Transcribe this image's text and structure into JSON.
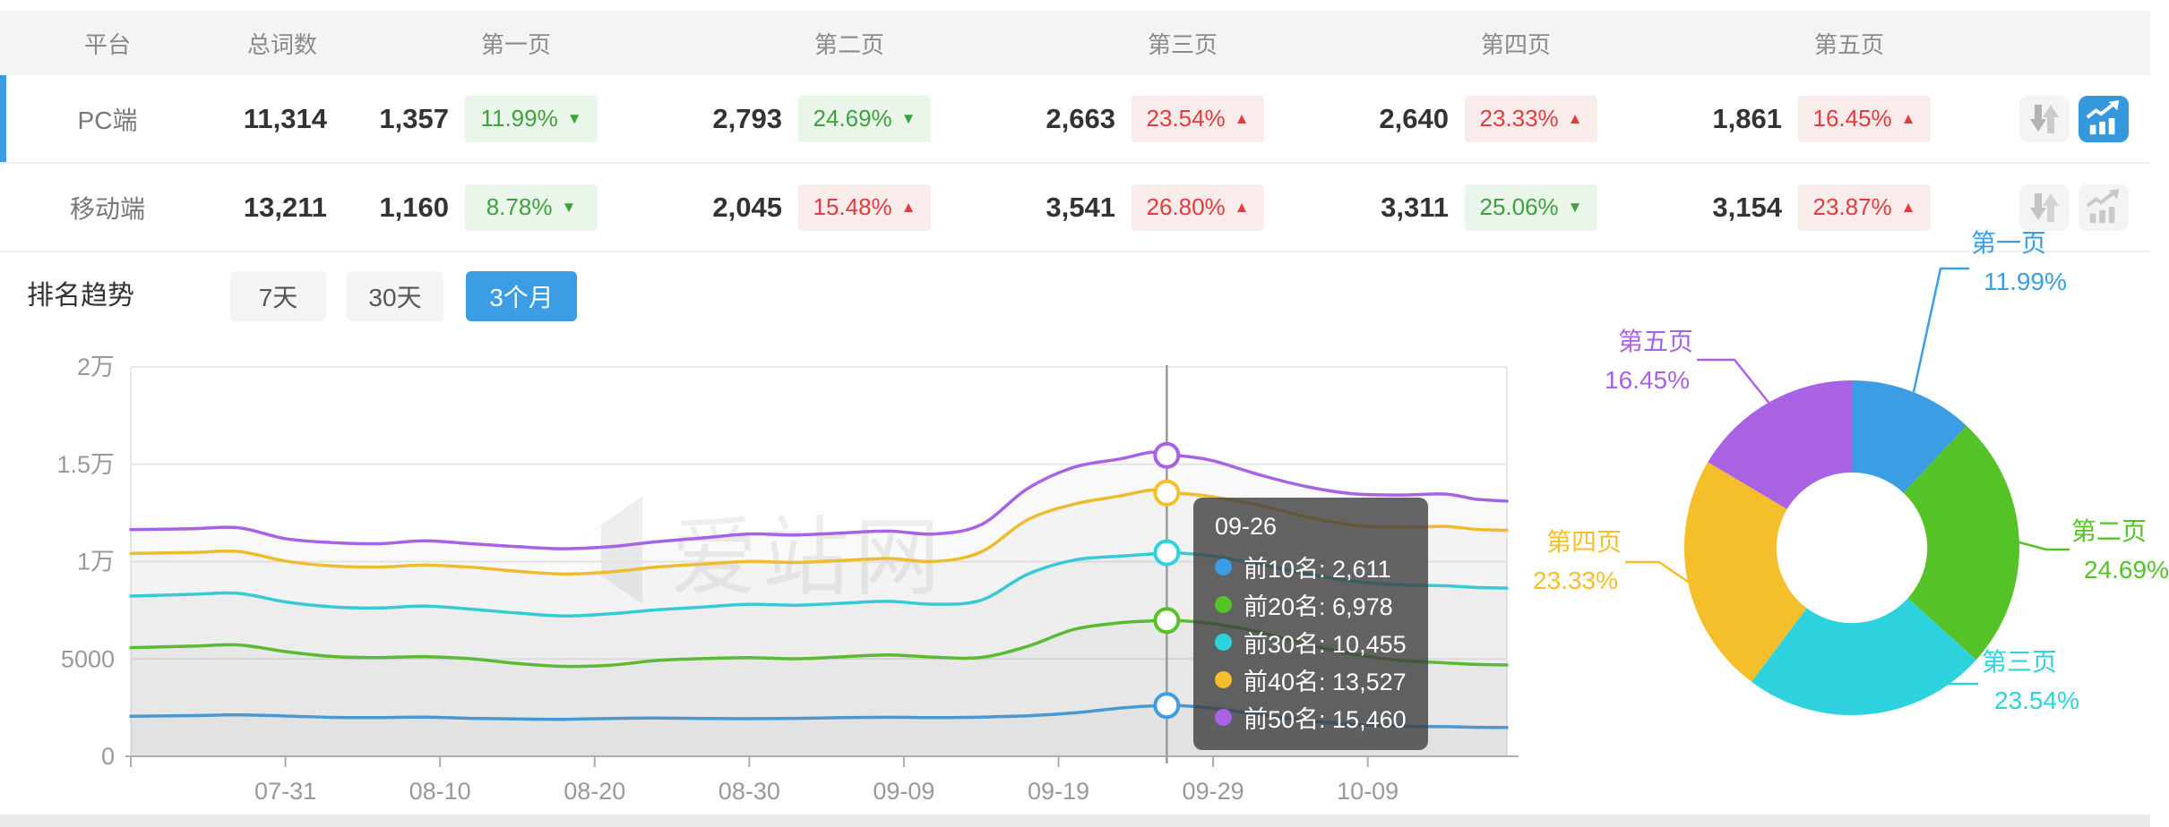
{
  "colors": {
    "accent": "#3B9DE4",
    "positive_green": "#3DA23D",
    "negative_red": "#E23C3C",
    "grid": "#E8E8E8"
  },
  "table": {
    "headers": [
      "平台",
      "总词数",
      "第一页",
      "第二页",
      "第三页",
      "第四页",
      "第五页"
    ],
    "rows": [
      {
        "platform": "PC端",
        "total": "11,314",
        "selected": "true",
        "trend_state": "active",
        "pages": [
          {
            "count": "1,357",
            "pct": "11.99%",
            "arrow": "▼",
            "tone": "down"
          },
          {
            "count": "2,793",
            "pct": "24.69%",
            "arrow": "▼",
            "tone": "down"
          },
          {
            "count": "2,663",
            "pct": "23.54%",
            "arrow": "▲",
            "tone": "up"
          },
          {
            "count": "2,640",
            "pct": "23.33%",
            "arrow": "▲",
            "tone": "up"
          },
          {
            "count": "1,861",
            "pct": "16.45%",
            "arrow": "▲",
            "tone": "up"
          }
        ]
      },
      {
        "platform": "移动端",
        "total": "13,211",
        "selected": "false",
        "trend_state": "inactive",
        "pages": [
          {
            "count": "1,160",
            "pct": "8.78%",
            "arrow": "▼",
            "tone": "down"
          },
          {
            "count": "2,045",
            "pct": "15.48%",
            "arrow": "▲",
            "tone": "up"
          },
          {
            "count": "3,541",
            "pct": "26.80%",
            "arrow": "▲",
            "tone": "up"
          },
          {
            "count": "3,311",
            "pct": "25.06%",
            "arrow": "▼",
            "tone": "down"
          },
          {
            "count": "3,154",
            "pct": "23.87%",
            "arrow": "▲",
            "tone": "up"
          }
        ]
      }
    ]
  },
  "trend_section": {
    "title": "排名趋势",
    "tabs": [
      {
        "label": "7天",
        "active": "false"
      },
      {
        "label": "30天",
        "active": "false"
      },
      {
        "label": "3个月",
        "active": "true"
      }
    ]
  },
  "watermark": {
    "text": "爱站网"
  },
  "chart_data": [
    {
      "type": "line",
      "title": "排名趋势",
      "x_axis": {
        "start_date": "07-21",
        "end_date": "10-18",
        "tick_labels": [
          "07-31",
          "08-10",
          "08-20",
          "08-30",
          "09-09",
          "09-19",
          "09-29",
          "10-09"
        ],
        "tick_days": [
          10,
          20,
          30,
          40,
          50,
          60,
          70,
          80
        ],
        "day_range": [
          0,
          89
        ]
      },
      "y_axis": {
        "range": [
          0,
          20000
        ],
        "ticks": [
          {
            "value": 0,
            "label": "0"
          },
          {
            "value": 5000,
            "label": "5000"
          },
          {
            "value": 10000,
            "label": "1万"
          },
          {
            "value": 15000,
            "label": "1.5万"
          },
          {
            "value": 20000,
            "label": "2万"
          }
        ]
      },
      "legend_position": "none",
      "grid": "horizontal",
      "series": [
        {
          "name": "前10名",
          "color": "#3B9DE4",
          "points": [
            [
              0,
              2060
            ],
            [
              4,
              2090
            ],
            [
              7,
              2130
            ],
            [
              10,
              2070
            ],
            [
              13,
              2000
            ],
            [
              16,
              1990
            ],
            [
              19,
              2010
            ],
            [
              22,
              1950
            ],
            [
              25,
              1915
            ],
            [
              28,
              1900
            ],
            [
              31,
              1945
            ],
            [
              34,
              1965
            ],
            [
              37,
              1945
            ],
            [
              40,
              1930
            ],
            [
              43,
              1950
            ],
            [
              46,
              1985
            ],
            [
              49,
              2005
            ],
            [
              52,
              1990
            ],
            [
              55,
              2015
            ],
            [
              58,
              2080
            ],
            [
              61,
              2230
            ],
            [
              64,
              2480
            ],
            [
              66,
              2590
            ],
            [
              67,
              2611
            ],
            [
              68,
              2600
            ],
            [
              70,
              2470
            ],
            [
              73,
              2150
            ],
            [
              76,
              1850
            ],
            [
              79,
              1640
            ],
            [
              82,
              1545
            ],
            [
              85,
              1520
            ],
            [
              87,
              1490
            ],
            [
              89,
              1475
            ]
          ]
        },
        {
          "name": "前20名",
          "color": "#55C327",
          "points": [
            [
              0,
              5580
            ],
            [
              4,
              5660
            ],
            [
              7,
              5720
            ],
            [
              10,
              5380
            ],
            [
              13,
              5130
            ],
            [
              16,
              5070
            ],
            [
              19,
              5120
            ],
            [
              22,
              5010
            ],
            [
              25,
              4770
            ],
            [
              28,
              4620
            ],
            [
              31,
              4680
            ],
            [
              34,
              4920
            ],
            [
              37,
              5020
            ],
            [
              40,
              5070
            ],
            [
              43,
              5010
            ],
            [
              46,
              5110
            ],
            [
              49,
              5210
            ],
            [
              52,
              5090
            ],
            [
              55,
              5080
            ],
            [
              58,
              5650
            ],
            [
              61,
              6520
            ],
            [
              64,
              6860
            ],
            [
              66,
              6950
            ],
            [
              67,
              6978
            ],
            [
              68,
              6960
            ],
            [
              70,
              6810
            ],
            [
              73,
              6380
            ],
            [
              76,
              5760
            ],
            [
              79,
              5260
            ],
            [
              82,
              4930
            ],
            [
              85,
              4800
            ],
            [
              87,
              4720
            ],
            [
              89,
              4690
            ]
          ]
        },
        {
          "name": "前30名",
          "color": "#2ED2DE",
          "points": [
            [
              0,
              8230
            ],
            [
              4,
              8320
            ],
            [
              7,
              8370
            ],
            [
              10,
              7930
            ],
            [
              13,
              7680
            ],
            [
              16,
              7620
            ],
            [
              19,
              7720
            ],
            [
              22,
              7560
            ],
            [
              25,
              7360
            ],
            [
              28,
              7210
            ],
            [
              31,
              7320
            ],
            [
              34,
              7520
            ],
            [
              37,
              7670
            ],
            [
              40,
              7810
            ],
            [
              43,
              7760
            ],
            [
              46,
              7860
            ],
            [
              49,
              7960
            ],
            [
              52,
              7810
            ],
            [
              55,
              8020
            ],
            [
              58,
              9350
            ],
            [
              61,
              10080
            ],
            [
              64,
              10280
            ],
            [
              66,
              10390
            ],
            [
              67,
              10455
            ],
            [
              68,
              10430
            ],
            [
              70,
              10280
            ],
            [
              73,
              9870
            ],
            [
              76,
              9380
            ],
            [
              79,
              9000
            ],
            [
              82,
              8810
            ],
            [
              85,
              8760
            ],
            [
              87,
              8670
            ],
            [
              89,
              8640
            ]
          ]
        },
        {
          "name": "前40名",
          "color": "#F5BE2B",
          "points": [
            [
              0,
              10420
            ],
            [
              4,
              10470
            ],
            [
              7,
              10520
            ],
            [
              10,
              10030
            ],
            [
              13,
              9780
            ],
            [
              16,
              9720
            ],
            [
              19,
              9820
            ],
            [
              22,
              9710
            ],
            [
              25,
              9510
            ],
            [
              28,
              9360
            ],
            [
              31,
              9470
            ],
            [
              34,
              9720
            ],
            [
              37,
              9870
            ],
            [
              40,
              10010
            ],
            [
              43,
              9960
            ],
            [
              46,
              10060
            ],
            [
              49,
              10160
            ],
            [
              52,
              10010
            ],
            [
              55,
              10500
            ],
            [
              58,
              12150
            ],
            [
              61,
              12950
            ],
            [
              64,
              13380
            ],
            [
              66,
              13680
            ],
            [
              67,
              13527
            ],
            [
              68,
              13500
            ],
            [
              70,
              13330
            ],
            [
              73,
              12890
            ],
            [
              76,
              12310
            ],
            [
              79,
              11880
            ],
            [
              82,
              11760
            ],
            [
              85,
              11810
            ],
            [
              87,
              11660
            ],
            [
              89,
              11610
            ]
          ]
        },
        {
          "name": "前50名",
          "color": "#A862E3",
          "points": [
            [
              0,
              11640
            ],
            [
              4,
              11690
            ],
            [
              7,
              11740
            ],
            [
              10,
              11180
            ],
            [
              13,
              10980
            ],
            [
              16,
              10920
            ],
            [
              19,
              11070
            ],
            [
              22,
              10920
            ],
            [
              25,
              10770
            ],
            [
              28,
              10660
            ],
            [
              31,
              10770
            ],
            [
              34,
              11020
            ],
            [
              37,
              11220
            ],
            [
              40,
              11420
            ],
            [
              43,
              11370
            ],
            [
              46,
              11470
            ],
            [
              49,
              11570
            ],
            [
              52,
              11420
            ],
            [
              55,
              11900
            ],
            [
              58,
              13750
            ],
            [
              61,
              14850
            ],
            [
              64,
              15280
            ],
            [
              66,
              15620
            ],
            [
              67,
              15460
            ],
            [
              68,
              15430
            ],
            [
              70,
              15180
            ],
            [
              73,
              14460
            ],
            [
              76,
              13860
            ],
            [
              79,
              13490
            ],
            [
              82,
              13420
            ],
            [
              85,
              13470
            ],
            [
              87,
              13210
            ],
            [
              89,
              13110
            ]
          ]
        }
      ],
      "hover": {
        "day": 67,
        "label": "09-26"
      },
      "tooltip": {
        "title": "09-26",
        "rows": [
          {
            "label": "前10名",
            "value": "2,611",
            "color": "#3B9DE4"
          },
          {
            "label": "前20名",
            "value": "6,978",
            "color": "#55C327"
          },
          {
            "label": "前30名",
            "value": "10,455",
            "color": "#2ED2DE"
          },
          {
            "label": "前40名",
            "value": "13,527",
            "color": "#F5BE2B"
          },
          {
            "label": "前50名",
            "value": "15,460",
            "color": "#A862E3"
          }
        ]
      }
    },
    {
      "type": "donut",
      "inner_radius_ratio": 0.45,
      "start_angle": "top",
      "direction": "clockwise",
      "slices": [
        {
          "label": "第一页",
          "value": 11.99,
          "display": "11.99%",
          "color": "#3B9DE4"
        },
        {
          "label": "第二页",
          "value": 24.69,
          "display": "24.69%",
          "color": "#55C327"
        },
        {
          "label": "第三页",
          "value": 23.54,
          "display": "23.54%",
          "color": "#2ED2DE"
        },
        {
          "label": "第四页",
          "value": 23.33,
          "display": "23.33%",
          "color": "#F5BE2B"
        },
        {
          "label": "第五页",
          "value": 16.45,
          "display": "16.45%",
          "color": "#A862E3"
        }
      ]
    }
  ]
}
